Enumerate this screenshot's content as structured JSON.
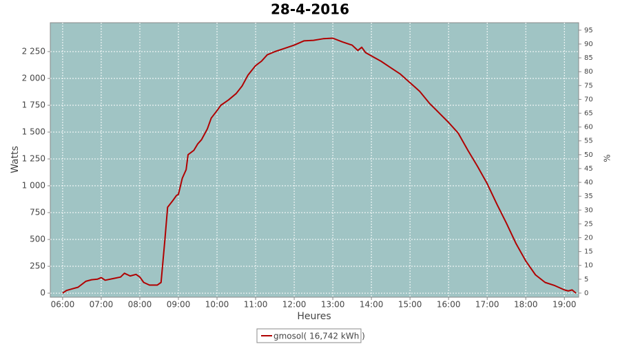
{
  "chart_data": {
    "type": "line",
    "title": "28-4-2016",
    "x_label": "Heures",
    "y_label": "Watts",
    "y2_label": "%",
    "x": [
      6.0,
      6.1,
      6.25,
      6.4,
      6.6,
      6.75,
      6.9,
      7.0,
      7.1,
      7.3,
      7.5,
      7.6,
      7.75,
      7.9,
      8.0,
      8.1,
      8.25,
      8.45,
      8.55,
      8.65,
      8.72,
      8.85,
      8.95,
      9.0,
      9.1,
      9.2,
      9.25,
      9.4,
      9.5,
      9.6,
      9.75,
      9.85,
      10.0,
      10.1,
      10.3,
      10.5,
      10.65,
      10.8,
      11.0,
      11.15,
      11.3,
      11.5,
      11.75,
      12.0,
      12.25,
      12.5,
      12.75,
      13.0,
      13.25,
      13.5,
      13.65,
      13.75,
      13.85,
      14.0,
      14.25,
      14.5,
      14.75,
      15.0,
      15.25,
      15.5,
      15.75,
      16.0,
      16.25,
      16.5,
      16.75,
      17.0,
      17.25,
      17.5,
      17.75,
      18.0,
      18.25,
      18.5,
      18.75,
      19.0,
      19.1,
      19.2,
      19.3
    ],
    "series": [
      {
        "name": "gmosol( 16,742 kWh )",
        "color": "#b00000",
        "values": [
          0,
          25,
          40,
          55,
          110,
          125,
          130,
          145,
          120,
          135,
          150,
          185,
          160,
          175,
          150,
          100,
          75,
          75,
          100,
          500,
          800,
          860,
          910,
          920,
          1070,
          1150,
          1290,
          1330,
          1390,
          1430,
          1530,
          1630,
          1700,
          1750,
          1800,
          1860,
          1930,
          2030,
          2120,
          2160,
          2220,
          2250,
          2280,
          2310,
          2350,
          2355,
          2370,
          2375,
          2340,
          2310,
          2260,
          2290,
          2240,
          2210,
          2160,
          2100,
          2040,
          1960,
          1880,
          1770,
          1680,
          1590,
          1490,
          1330,
          1180,
          1020,
          830,
          650,
          460,
          300,
          170,
          100,
          70,
          30,
          20,
          30,
          0
        ]
      }
    ],
    "xlim": [
      5.68,
      19.37
    ],
    "xticks": [
      {
        "value": 6,
        "label": "06:00"
      },
      {
        "value": 7,
        "label": "07:00"
      },
      {
        "value": 8,
        "label": "08:00"
      },
      {
        "value": 9,
        "label": "09:00"
      },
      {
        "value": 10,
        "label": "10:00"
      },
      {
        "value": 11,
        "label": "11:00"
      },
      {
        "value": 12,
        "label": "12:00"
      },
      {
        "value": 13,
        "label": "13:00"
      },
      {
        "value": 14,
        "label": "14:00"
      },
      {
        "value": 15,
        "label": "15:00"
      },
      {
        "value": 16,
        "label": "16:00"
      },
      {
        "value": 17,
        "label": "17:00"
      },
      {
        "value": 18,
        "label": "18:00"
      },
      {
        "value": 19,
        "label": "19:00"
      }
    ],
    "ylim": [
      -38,
      2519
    ],
    "yticks": [
      0,
      250,
      500,
      750,
      {
        "value": 1000,
        "label": "1 000"
      },
      {
        "value": 1250,
        "label": "1 250"
      },
      {
        "value": 1500,
        "label": "1 500"
      },
      {
        "value": 1750,
        "label": "1 750"
      },
      {
        "value": 2000,
        "label": "2 000"
      },
      {
        "value": 2250,
        "label": "2 250"
      }
    ],
    "y2lim": [
      -1.5,
      97.7
    ],
    "y2ticks": [
      0,
      5,
      10,
      15,
      20,
      25,
      30,
      35,
      40,
      45,
      50,
      55,
      60,
      65,
      70,
      75,
      80,
      85,
      90,
      95
    ],
    "grid": true,
    "plot_background": "#a0c4c4",
    "legend": "bottom"
  }
}
